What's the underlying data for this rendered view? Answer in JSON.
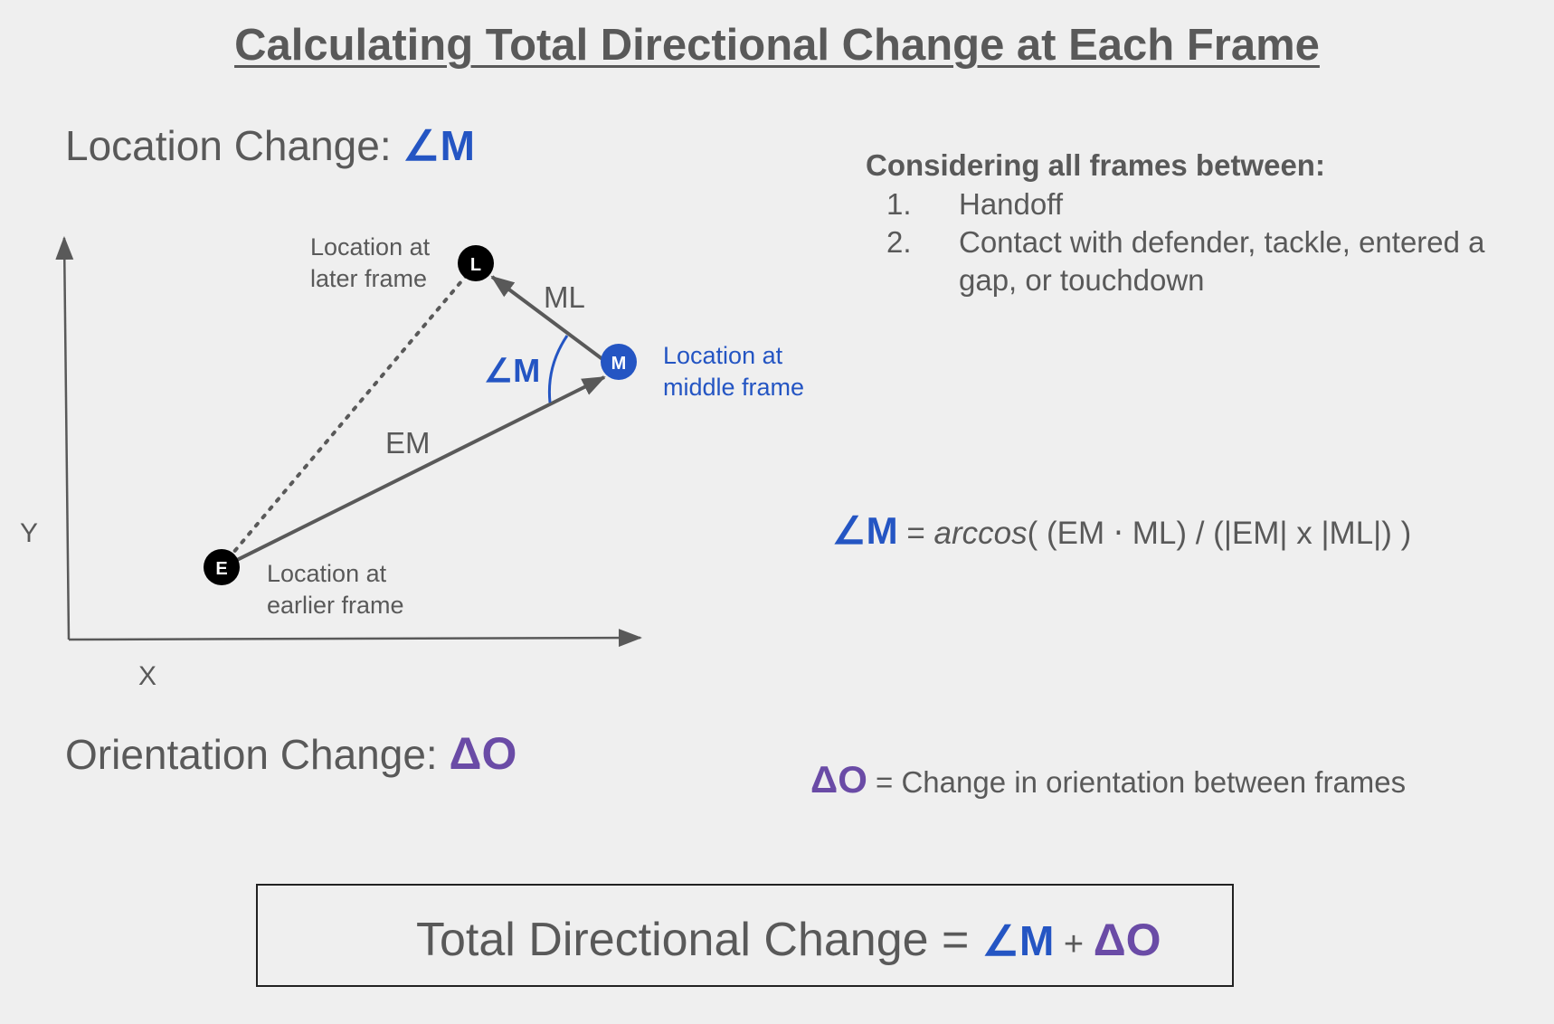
{
  "title": "Calculating Total Directional Change at Each Frame",
  "location_change": {
    "label": "Location Change:",
    "symbol": "∠M"
  },
  "orientation_change": {
    "label": "Orientation Change:",
    "symbol": "ΔO"
  },
  "frames": {
    "heading": "Considering all frames between:",
    "items": [
      {
        "num": "1.",
        "text": "Handoff"
      },
      {
        "num": "2.",
        "text": "Contact with defender, tackle, entered a gap, or touchdown"
      }
    ]
  },
  "diagram": {
    "axis_y": "Y",
    "axis_x": "X",
    "points": {
      "E": {
        "letter": "E",
        "label_line1": "Location at",
        "label_line2": "earlier frame"
      },
      "M": {
        "letter": "M",
        "label_line1": "Location at",
        "label_line2": "middle frame"
      },
      "L": {
        "letter": "L",
        "label_line1": "Location at",
        "label_line2": "later frame"
      }
    },
    "vector_em": "EM",
    "vector_ml": "ML",
    "angle_label": "∠M"
  },
  "formula_m": {
    "symbol": "∠M",
    "equals": " = ",
    "func": "arccos",
    "body": "( (EM ⋅ ML) / (|EM| x |ML|) )"
  },
  "formula_o": {
    "symbol": "ΔO",
    "text": " = Change in orientation between frames"
  },
  "total": {
    "label": "Total Directional Change = ",
    "sym_m": "∠M",
    "plus": " + ",
    "sym_o": "ΔO"
  },
  "colors": {
    "blue": "#2455c3",
    "purple": "#6a4ba6",
    "text": "#595959",
    "arrow": "#595959"
  }
}
